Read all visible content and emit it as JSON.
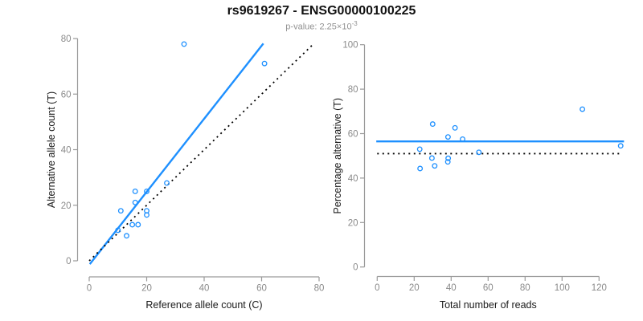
{
  "header": {
    "title": "rs9619267 - ENSG00000100225",
    "p_value_prefix": "p-value: 2.25×10",
    "p_value_exponent": "-3"
  },
  "colors": {
    "accent_blue": "#1E90FF",
    "line_black": "#000000",
    "axis_line_gray": "#9a9a9a",
    "tick_label_gray": "#8a8a8a",
    "axis_title_color": "#1a1a1a",
    "subtitle_gray": "#929292"
  },
  "chart_data": [
    {
      "type": "scatter",
      "panel": "allele-counts",
      "xlabel": "Reference allele count (C)",
      "ylabel": "Alternative allele count (T)",
      "xlim": [
        0,
        80
      ],
      "ylim": [
        0,
        80
      ],
      "grid": false,
      "legend": "none",
      "marker": "open-circle",
      "points": [
        [
          10,
          11
        ],
        [
          11,
          18
        ],
        [
          13,
          9
        ],
        [
          15,
          13
        ],
        [
          16,
          21
        ],
        [
          16,
          25
        ],
        [
          17,
          13
        ],
        [
          20,
          16.5
        ],
        [
          20,
          18
        ],
        [
          20,
          25
        ],
        [
          27,
          28
        ],
        [
          33,
          78
        ],
        [
          61,
          71
        ]
      ],
      "lines": [
        {
          "role": "regression-fit",
          "x1": 0.2,
          "y1": -1.2,
          "x2": 60.6,
          "y2": 78.2,
          "color": "#1E90FF",
          "dashed": false
        },
        {
          "role": "identity-diagonal",
          "x1": 0,
          "y1": 0,
          "x2": 77.5,
          "y2": 77.5,
          "color": "#000000",
          "dashed": true
        }
      ],
      "xticks": [
        0,
        20,
        40,
        60,
        80
      ],
      "yticks": [
        0,
        20,
        40,
        60,
        80
      ]
    },
    {
      "type": "scatter",
      "panel": "percentage-vs-reads",
      "xlabel": "Total number of reads",
      "ylabel": "Percentage alternative (T)",
      "xlim": [
        0,
        133
      ],
      "ylim": [
        0,
        100
      ],
      "grid": false,
      "legend": "none",
      "marker": "open-circle",
      "points": [
        [
          23,
          53
        ],
        [
          23.2,
          44.3
        ],
        [
          29.6,
          49
        ],
        [
          30,
          64.3
        ],
        [
          31.1,
          45.5
        ],
        [
          38.2,
          47.3
        ],
        [
          38.4,
          48.9
        ],
        [
          38.3,
          58.5
        ],
        [
          42.1,
          62.6
        ],
        [
          46.2,
          57.5
        ],
        [
          55,
          51.6
        ],
        [
          111,
          71
        ],
        [
          131.7,
          54.5
        ]
      ],
      "lines": [
        {
          "role": "mean-percentage",
          "x1": -0.5,
          "y1": 56.5,
          "x2": 133.5,
          "y2": 56.5,
          "color": "#1E90FF",
          "dashed": false
        },
        {
          "role": "expected-percentage",
          "x1": 0,
          "y1": 51,
          "x2": 131,
          "y2": 51,
          "color": "#000000",
          "dashed": true
        }
      ],
      "xticks": [
        0,
        20,
        40,
        60,
        80,
        100,
        120
      ],
      "yticks": [
        0,
        20,
        40,
        60,
        80,
        100
      ]
    }
  ]
}
